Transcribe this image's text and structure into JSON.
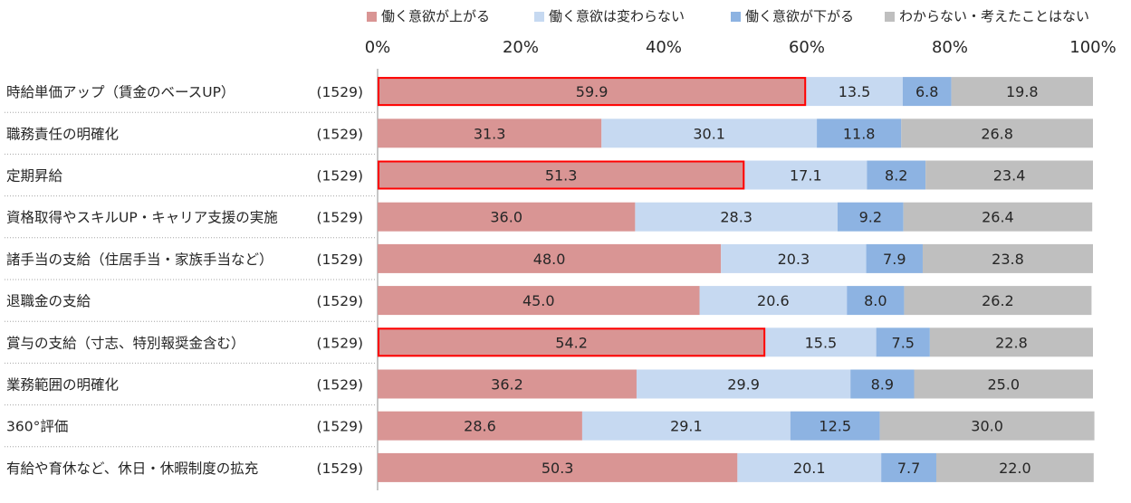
{
  "chart_data": {
    "type": "bar",
    "orientation": "horizontal",
    "stacked": true,
    "percent_scale": true,
    "title": "",
    "xlabel": "",
    "ylabel": "",
    "xlim": [
      0,
      100
    ],
    "x_ticks": [
      "0%",
      "20%",
      "40%",
      "60%",
      "80%",
      "100%"
    ],
    "legend_position": "top",
    "grid": false,
    "categories": [
      "時給単価アップ（賃金のベースUP）",
      "職務責任の明確化",
      "定期昇給",
      "資格取得やスキルUP・キャリア支援の実施",
      "諸手当の支給（住居手当・家族手当など）",
      "退職金の支給",
      "賞与の支給（寸志、特別報奨金含む）",
      "業務範囲の明確化",
      "360°評価",
      "有給や育休など、休日・休暇制度の拡充"
    ],
    "sample_sizes": [
      "(1529)",
      "(1529)",
      "(1529)",
      "(1529)",
      "(1529)",
      "(1529)",
      "(1529)",
      "(1529)",
      "(1529)",
      "(1529)"
    ],
    "highlighted_rows": [
      0,
      2,
      6
    ],
    "highlight_color": "#ff0000",
    "series": [
      {
        "name": "働く意欲が上がる",
        "color": "#d99594",
        "values": [
          59.9,
          31.3,
          51.3,
          36.0,
          48.0,
          45.0,
          54.2,
          36.2,
          28.6,
          50.3
        ]
      },
      {
        "name": "働く意欲は変わらない",
        "color": "#c6d9f1",
        "values": [
          13.5,
          30.1,
          17.1,
          28.3,
          20.3,
          20.6,
          15.5,
          29.9,
          29.1,
          20.1
        ]
      },
      {
        "name": "働く意欲が下がる",
        "color": "#8db3e2",
        "values": [
          6.8,
          11.8,
          8.2,
          9.2,
          7.9,
          8.0,
          7.5,
          8.9,
          12.5,
          7.7
        ]
      },
      {
        "name": "わからない・考えたことはない",
        "color": "#bfbfbf",
        "values": [
          19.8,
          26.8,
          23.4,
          26.4,
          23.8,
          26.2,
          22.8,
          25.0,
          30.0,
          22.0
        ]
      }
    ]
  }
}
